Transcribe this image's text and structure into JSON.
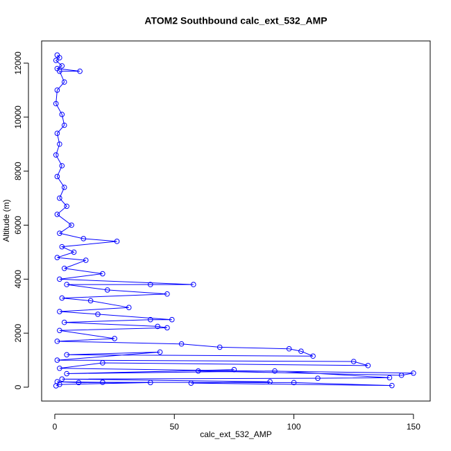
{
  "chart_data": {
    "type": "line",
    "markers": true,
    "title": "ATOM2 Southbound calc_ext_532_AMP",
    "xlabel": "calc_ext_532_AMP",
    "ylabel": "Altitude (m)",
    "color": "#0000ff",
    "x": [
      1,
      2,
      0.5,
      3,
      1,
      10.5,
      2,
      4,
      1,
      0.5,
      3,
      4,
      1,
      2,
      0.5,
      3,
      1,
      4,
      2,
      5,
      1,
      7,
      2,
      12,
      26,
      3,
      8,
      1,
      13,
      4,
      20,
      2,
      58,
      40,
      5,
      22,
      47,
      3,
      15,
      31,
      2,
      18,
      49,
      40,
      4,
      43,
      47,
      2,
      25,
      1,
      53,
      69,
      98,
      103,
      108,
      5,
      44,
      1,
      125,
      131,
      20,
      2,
      150,
      145,
      60,
      75,
      5,
      92,
      140,
      110,
      3,
      90,
      57,
      141,
      100,
      20,
      1,
      10,
      40,
      2,
      0.5
    ],
    "values": [
      12300,
      12200,
      12100,
      11900,
      11800,
      11700,
      11700,
      11300,
      11000,
      10500,
      10100,
      9700,
      9400,
      9000,
      8600,
      8200,
      7800,
      7400,
      7000,
      6700,
      6400,
      6000,
      5700,
      5500,
      5400,
      5200,
      5000,
      4800,
      4700,
      4400,
      4200,
      4000,
      3800,
      3800,
      3800,
      3600,
      3450,
      3300,
      3200,
      2950,
      2800,
      2700,
      2500,
      2500,
      2400,
      2250,
      2200,
      2100,
      1800,
      1700,
      1600,
      1480,
      1420,
      1330,
      1150,
      1200,
      1300,
      1000,
      950,
      800,
      900,
      700,
      520,
      440,
      600,
      650,
      500,
      600,
      350,
      330,
      300,
      200,
      150,
      60,
      170,
      180,
      200,
      170,
      170,
      100,
      50
    ],
    "xlim": [
      -5.5,
      157
    ],
    "ylim": [
      -514,
      12822
    ],
    "xticks": [
      0,
      50,
      100,
      150
    ],
    "yticks": [
      0,
      2000,
      4000,
      6000,
      8000,
      10000,
      12000
    ]
  }
}
